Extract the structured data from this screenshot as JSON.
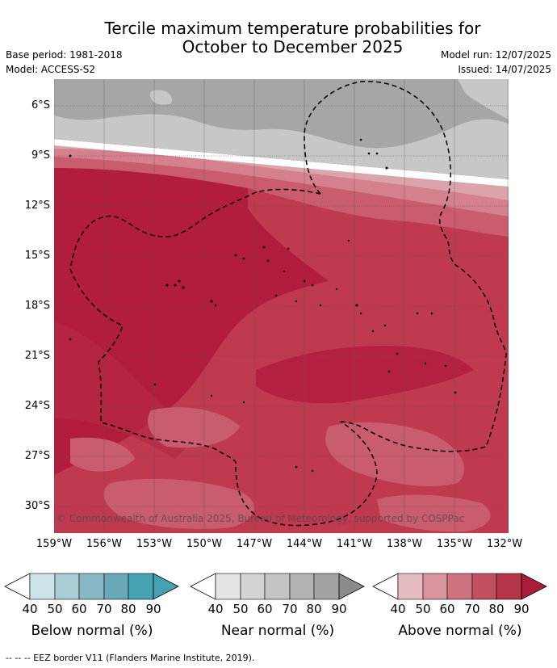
{
  "title": {
    "line1": "Tercile maximum temperature probabilities for",
    "line2": "October to December 2025"
  },
  "meta": {
    "base_period": "Base period: 1981-2018",
    "model": "Model: ACCESS-S2",
    "model_run": "Model run: 12/07/2025",
    "issued": "Issued: 14/07/2025"
  },
  "map": {
    "latitude_labels": [
      "6°S",
      "9°S",
      "12°S",
      "15°S",
      "18°S",
      "21°S",
      "24°S",
      "27°S",
      "30°S"
    ],
    "longitude_labels": [
      "159°W",
      "156°W",
      "153°W",
      "150°W",
      "147°W",
      "144°W",
      "141°W",
      "138°W",
      "135°W",
      "132°W"
    ],
    "copyright": "© Commonwealth of Australia 2025, Bureau of Meteorology, supported by COSPPac",
    "colors": {
      "near_normal": [
        "#c7c7c7",
        "#a6a6a6"
      ],
      "above_normal": [
        "#dba4ab",
        "#d4808d",
        "#c95c6d",
        "#c03a4f",
        "#b21d3d"
      ]
    }
  },
  "colorbars": [
    {
      "label": "Below normal (%)",
      "ticks": [
        "40",
        "50",
        "60",
        "70",
        "80",
        "90"
      ],
      "colors": [
        "#ffffff",
        "#cde3ea",
        "#a9ccd5",
        "#88b8c6",
        "#68a8b9",
        "#45a0b2"
      ]
    },
    {
      "label": "Near normal (%)",
      "ticks": [
        "40",
        "50",
        "60",
        "70",
        "80",
        "90"
      ],
      "colors": [
        "#ffffff",
        "#e4e4e4",
        "#d3d3d3",
        "#c4c4c4",
        "#b3b3b3",
        "#a3a3a3",
        "#8b8b8b"
      ]
    },
    {
      "label": "Above normal (%)",
      "ticks": [
        "40",
        "50",
        "60",
        "70",
        "80",
        "90"
      ],
      "colors": [
        "#ffffff",
        "#e6bcc2",
        "#d9959e",
        "#cc717d",
        "#c2515f",
        "#b73548",
        "#ab1c3a"
      ]
    }
  ],
  "footnote": "-- -- -- EEZ border V11 (Flanders Marine Institute, 2019)."
}
